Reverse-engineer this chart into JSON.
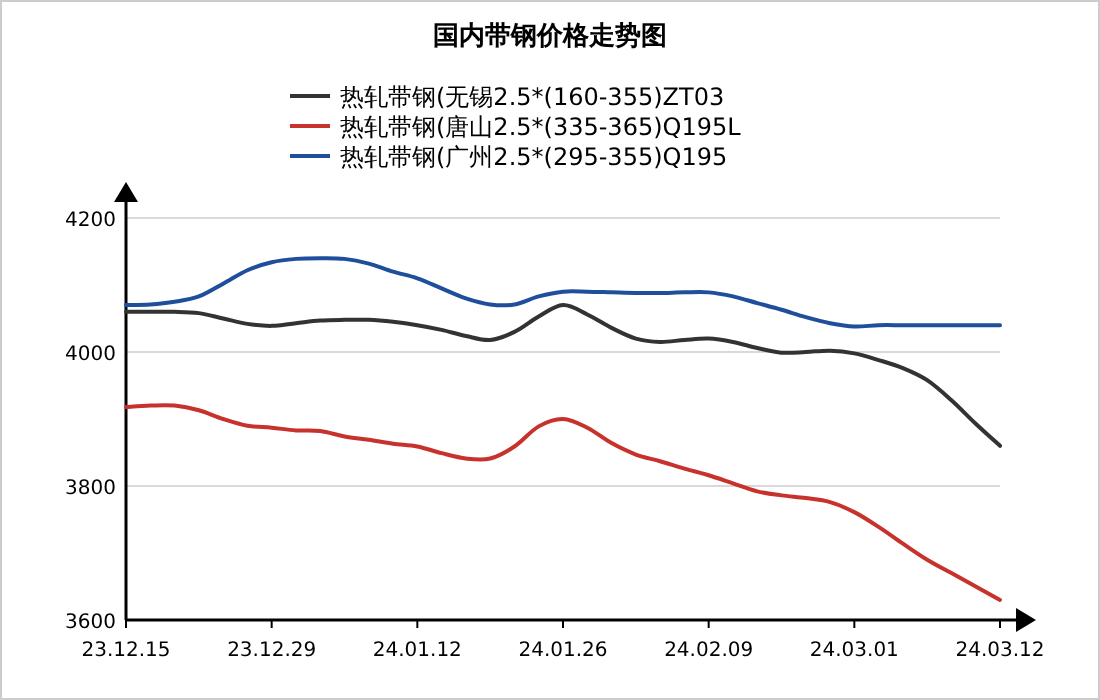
{
  "chart_data": {
    "type": "line",
    "title": "国内带钢价格走势图",
    "categories": [
      "23.12.15",
      null,
      null,
      null,
      null,
      null,
      "23.12.29",
      null,
      null,
      null,
      null,
      null,
      "24.01.12",
      null,
      null,
      null,
      null,
      null,
      "24.01.26",
      null,
      null,
      null,
      null,
      null,
      "24.02.09",
      null,
      null,
      null,
      null,
      null,
      "24.03.01",
      null,
      null,
      null,
      null,
      null,
      "24.03.12"
    ],
    "series": [
      {
        "name": "热轧带钢(无锡2.5*(160-355)ZT03",
        "color": "#333333",
        "values": [
          4060,
          4060,
          4060,
          4058,
          4050,
          4042,
          4039,
          4043,
          4047,
          4048,
          4048,
          4045,
          4040,
          4033,
          4024,
          4018,
          4030,
          4053,
          4070,
          4056,
          4036,
          4020,
          4015,
          4018,
          4020,
          4015,
          4006,
          3999,
          4000,
          4002,
          3998,
          3988,
          3976,
          3958,
          3928,
          3893,
          3860
        ]
      },
      {
        "name": "热轧带钢(唐山2.5*(335-365)Q195L",
        "color": "#c8322d",
        "values": [
          3918,
          3920,
          3920,
          3913,
          3900,
          3890,
          3887,
          3883,
          3882,
          3874,
          3869,
          3863,
          3859,
          3849,
          3841,
          3841,
          3859,
          3889,
          3900,
          3887,
          3864,
          3847,
          3837,
          3826,
          3816,
          3804,
          3792,
          3786,
          3782,
          3776,
          3761,
          3739,
          3714,
          3690,
          3670,
          3650,
          3630
        ]
      },
      {
        "name": "热轧带钢(广州2.5*(295-355)Q195",
        "color": "#1f4e9c",
        "values": [
          4070,
          4071,
          4075,
          4083,
          4102,
          4122,
          4134,
          4139,
          4140,
          4139,
          4132,
          4120,
          4110,
          4095,
          4080,
          4071,
          4071,
          4083,
          4090,
          4090,
          4089,
          4088,
          4088,
          4089,
          4089,
          4083,
          4073,
          4063,
          4052,
          4043,
          4038,
          4040,
          4040,
          4040,
          4040,
          4040,
          4040
        ]
      }
    ],
    "ylim": [
      3600,
      4200
    ],
    "yticks": [
      3600,
      3800,
      4000,
      4200
    ],
    "grid": "y",
    "legend": "top",
    "marker": "none",
    "line_style": "solid"
  }
}
